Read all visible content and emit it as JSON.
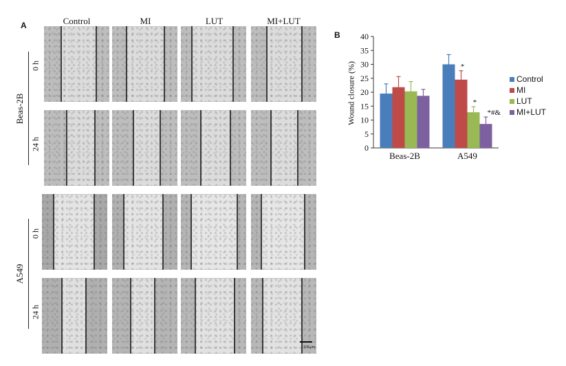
{
  "panelA": {
    "letter": "A",
    "columns": [
      "Control",
      "MI",
      "LUT",
      "MI+LUT"
    ],
    "groups": [
      {
        "name": "Beas-2B",
        "times": [
          "0 h",
          "24 h"
        ]
      },
      {
        "name": "A549",
        "times": [
          "0 h",
          "24 h"
        ]
      }
    ],
    "scale_bar": "100 μm"
  },
  "panelB": {
    "letter": "B",
    "colors": {
      "Control": "#4a7ebb",
      "MI": "#be4b48",
      "LUT": "#98b954",
      "MI+LUT": "#7d60a0"
    }
  },
  "chart_data": {
    "type": "bar",
    "ylabel": "Wound closure (%)",
    "ylim": [
      0,
      40
    ],
    "yticks": [
      0,
      5,
      10,
      15,
      20,
      25,
      30,
      35,
      40
    ],
    "categories": [
      "Beas-2B",
      "A549"
    ],
    "legend_position": "right",
    "series": [
      {
        "name": "Control",
        "values": [
          19.5,
          30
        ],
        "errors": [
          3.5,
          3.5
        ]
      },
      {
        "name": "MI",
        "values": [
          21.8,
          24.5
        ],
        "errors": [
          3.8,
          3.2
        ]
      },
      {
        "name": "LUT",
        "values": [
          20.3,
          12.8
        ],
        "errors": [
          3.5,
          2
        ]
      },
      {
        "name": "MI+LUT",
        "values": [
          18.7,
          8.6
        ],
        "errors": [
          2.3,
          2.5
        ]
      }
    ],
    "annotations": [
      {
        "category": "A549",
        "series": "MI",
        "text": "*"
      },
      {
        "category": "A549",
        "series": "LUT",
        "text": "*"
      },
      {
        "category": "A549",
        "series": "MI+LUT",
        "text": "*#&"
      }
    ]
  }
}
